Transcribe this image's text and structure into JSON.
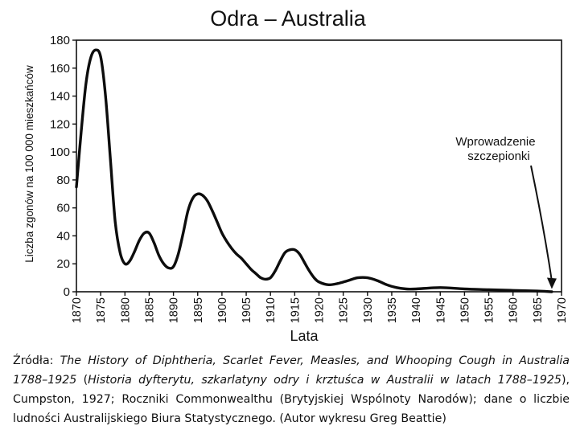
{
  "chart_data": {
    "type": "line",
    "title": "Odra – Australia",
    "xlabel": "Lata",
    "ylabel": "Liczba zgonów na 100 000 mieszkańców",
    "xlim": [
      1870,
      1970
    ],
    "ylim": [
      0,
      180
    ],
    "x_ticks": [
      1870,
      1875,
      1880,
      1885,
      1890,
      1895,
      1900,
      1905,
      1910,
      1915,
      1920,
      1925,
      1930,
      1935,
      1940,
      1945,
      1950,
      1955,
      1960,
      1965,
      1970
    ],
    "y_ticks": [
      0,
      20,
      40,
      60,
      80,
      100,
      120,
      140,
      160,
      180
    ],
    "grid": false,
    "series": [
      {
        "x": [
          1870,
          1871,
          1872,
          1873,
          1874,
          1875,
          1876,
          1877,
          1878,
          1879,
          1880,
          1881,
          1882,
          1883,
          1884,
          1885,
          1886,
          1887,
          1888,
          1889,
          1890,
          1891,
          1892,
          1893,
          1894,
          1895,
          1896,
          1897,
          1898,
          1899,
          1900,
          1901,
          1902,
          1903,
          1904,
          1905,
          1906,
          1907,
          1908,
          1909,
          1910,
          1911,
          1912,
          1913,
          1914,
          1915,
          1916,
          1917,
          1918,
          1919,
          1920,
          1922,
          1924,
          1926,
          1928,
          1930,
          1932,
          1934,
          1936,
          1938,
          1940,
          1945,
          1950,
          1955,
          1960,
          1965,
          1968
        ],
        "y": [
          75,
          115,
          150,
          168,
          173,
          168,
          140,
          95,
          50,
          28,
          20,
          22,
          29,
          37,
          42,
          42,
          35,
          26,
          20,
          17,
          18,
          27,
          42,
          58,
          67,
          70,
          69,
          65,
          58,
          50,
          42,
          36,
          31,
          27,
          24,
          20,
          16,
          13,
          10,
          9,
          10,
          15,
          22,
          28,
          30,
          30,
          27,
          21,
          15,
          10,
          7,
          5,
          6,
          8,
          10,
          10,
          8,
          5,
          3,
          2,
          2,
          3,
          2,
          1.5,
          1,
          0.5,
          0
        ]
      }
    ],
    "annotation": {
      "line1": "Wprowadzenie",
      "line2": "szczepionki",
      "target_x": 1968,
      "target_y": 2
    }
  },
  "caption": {
    "prefix": "Źródła: ",
    "title_en": "The History of Diphtheria, Scarlet Fever, Measles, and Whooping Cough in Australia 1788–1925",
    "mid1": " (",
    "title_pl": "Historia dyfterytu, szkarlatyny odry i krztuśca w Australii w latach 1788–1925",
    "rest": "), Cumpston, 1927; Roczniki Commonwealthu (Brytyjskiej Wspólnoty Narodów); dane o liczbie ludności Australijskiego Biura Statystycznego. (Autor wykresu Greg Beattie)"
  }
}
